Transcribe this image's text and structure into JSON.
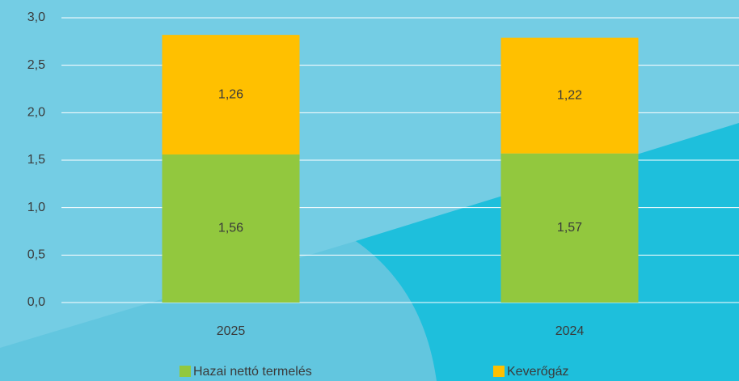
{
  "chart_data": {
    "type": "stacked_bar",
    "categories": [
      "2025",
      "2024"
    ],
    "series": [
      {
        "name": "Hazai nettó termelés",
        "color": "#92c83e",
        "values": [
          1.56,
          1.57
        ],
        "value_labels": [
          "1,56",
          "1,57"
        ]
      },
      {
        "name": "Keverőgáz",
        "color": "#ffc000",
        "values": [
          1.26,
          1.22
        ],
        "value_labels": [
          "1,26",
          "1,22"
        ]
      }
    ],
    "ylim": [
      0,
      3
    ],
    "yticks": [
      {
        "value": 0,
        "label": "0,0"
      },
      {
        "value": 0.5,
        "label": "0,5"
      },
      {
        "value": 1,
        "label": "1,0"
      },
      {
        "value": 1.5,
        "label": "1,5"
      },
      {
        "value": 2,
        "label": "2,0"
      },
      {
        "value": 2.5,
        "label": "2,5"
      },
      {
        "value": 3,
        "label": "3,0"
      }
    ],
    "grid": true,
    "legend": "bottom"
  }
}
